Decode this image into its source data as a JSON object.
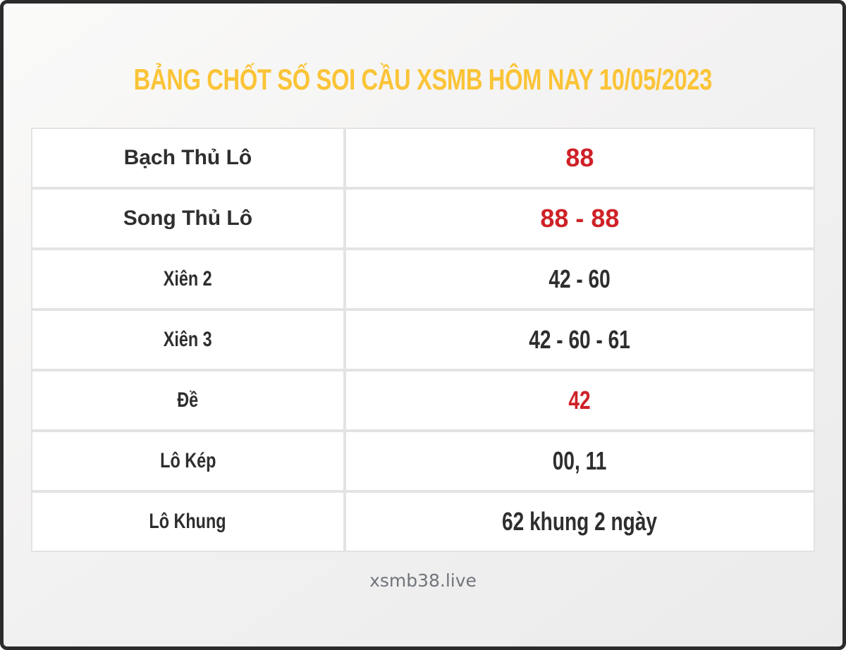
{
  "title": {
    "text": "BẢNG CHỐT SỐ SOI CẦU XSMB HÔM NAY 10/05/2023"
  },
  "table": {
    "rows": [
      {
        "label": "Bạch Thủ Lô",
        "value": "88",
        "value_color": "red",
        "font": "wide"
      },
      {
        "label": "Song Thủ Lô",
        "value": "88 - 88",
        "value_color": "red",
        "font": "wide"
      },
      {
        "label": "Xiên 2",
        "value": "42 - 60",
        "value_color": "black",
        "font": "condensed"
      },
      {
        "label": "Xiên 3",
        "value": "42 - 60 - 61",
        "value_color": "black",
        "font": "condensed"
      },
      {
        "label": "Đề",
        "value": "42",
        "value_color": "red",
        "font": "condensed"
      },
      {
        "label": "Lô Kép",
        "value": "00, 11",
        "value_color": "black",
        "font": "condensed"
      },
      {
        "label": "Lô Khung",
        "value": "62 khung 2 ngày",
        "value_color": "black",
        "font": "condensed"
      }
    ]
  },
  "footer": {
    "text": "xsmb38.live"
  },
  "colors": {
    "title_yellow": "#fbc437",
    "value_red": "#ce2127",
    "text_dark": "#2e2e2e",
    "footer_gray": "#70757b",
    "cell_border": "#e3e3e3",
    "frame_border": "#2b2b2b",
    "cell_background": "#ffffff"
  },
  "chart_data": {
    "type": "table",
    "title": "BẢNG CHỐT SỐ SOI CẦU XSMB HÔM NAY 10/05/2023",
    "columns": [
      "label",
      "value"
    ],
    "rows": [
      [
        "Bạch Thủ Lô",
        "88"
      ],
      [
        "Song Thủ Lô",
        "88 - 88"
      ],
      [
        "Xiên 2",
        "42 - 60"
      ],
      [
        "Xiên 3",
        "42 - 60 - 61"
      ],
      [
        "Đề",
        "42"
      ],
      [
        "Lô Kép",
        "00, 11"
      ],
      [
        "Lô Khung",
        "62 khung 2 ngày"
      ]
    ],
    "footer": "xsmb38.live",
    "highlighted_red_rows": [
      "Bạch Thủ Lô",
      "Song Thủ Lô",
      "Đề"
    ]
  }
}
